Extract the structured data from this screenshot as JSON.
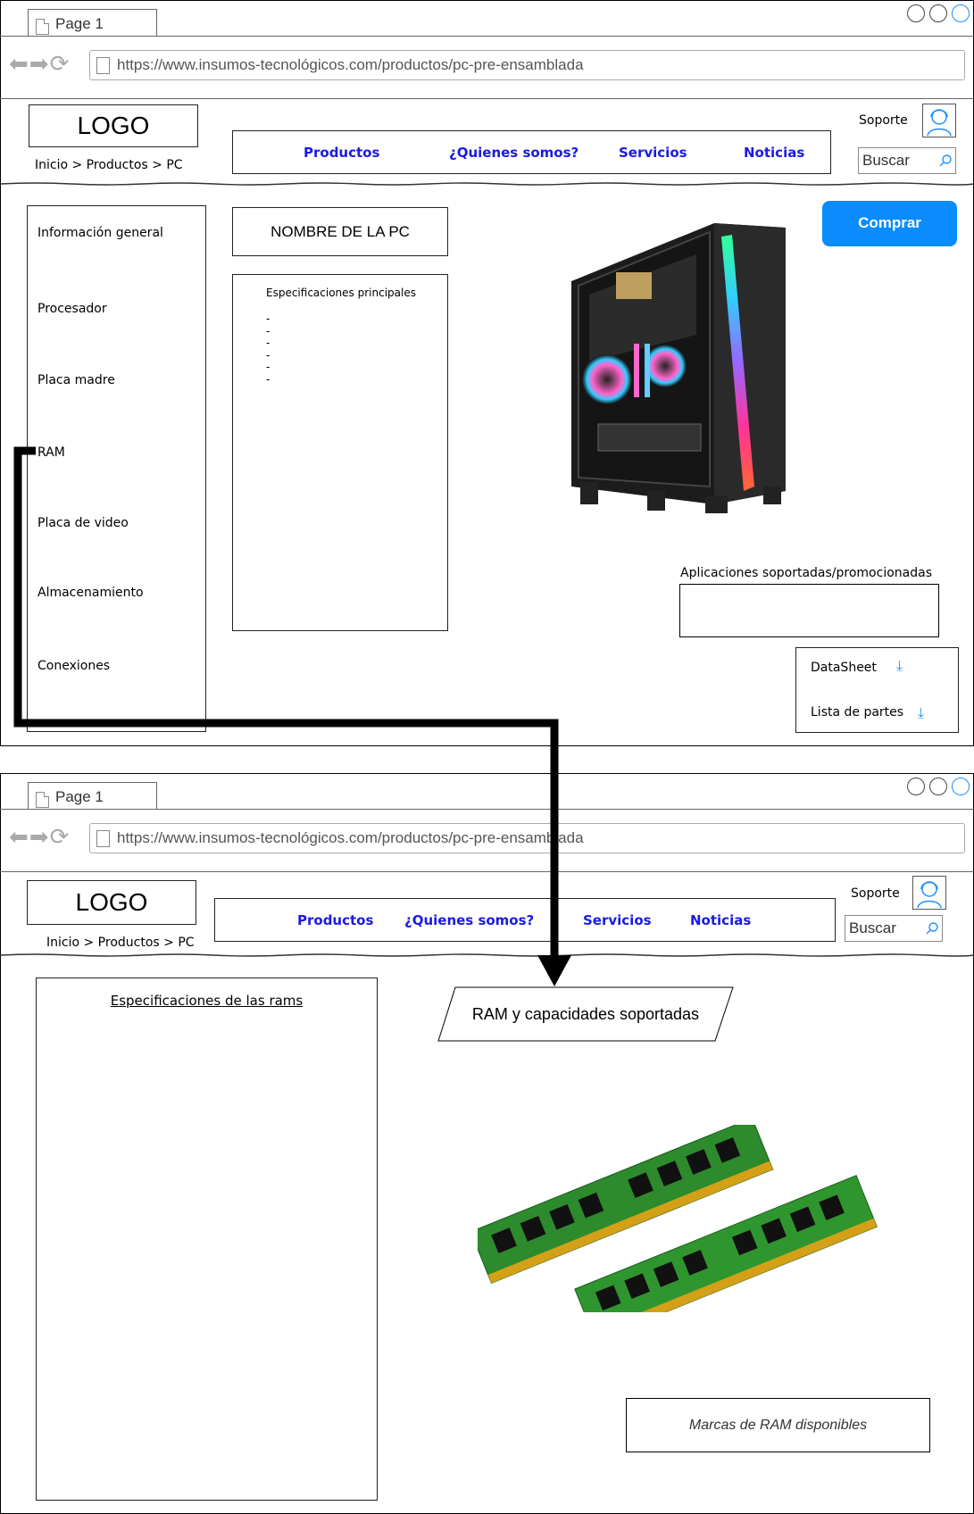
{
  "browser_top": {
    "tab_label": "Page 1",
    "url": "https://www.insumos-tecnológicos.com/productos/pc-pre-ensamblada"
  },
  "browser_bottom": {
    "tab_label": "Page 1",
    "url": "https://www.insumos-tecnológicos.com/productos/pc-pre-ensamblada"
  },
  "header": {
    "logo": "LOGO",
    "breadcrumb": "Inicio > Productos > PC",
    "menu": [
      "Productos",
      "¿Quienes somos?",
      "Servicios",
      "Noticias"
    ],
    "support": "Soporte",
    "search_placeholder": "Buscar"
  },
  "page1": {
    "sidebar": [
      "Información general",
      "Procesador",
      "Placa madre",
      "RAM",
      "Placa de video",
      "Almacenamiento",
      "Conexiones"
    ],
    "pc_name": "NOMBRE DE LA PC",
    "specs_title": "Especificaciones principales",
    "specs_items": [
      "-",
      "-",
      "-",
      "-",
      "-",
      "-"
    ],
    "buy_label": "Comprar",
    "apps_label": "Aplicaciones soportadas/promocionadas",
    "downloads": [
      "DataSheet",
      "Lista de partes"
    ]
  },
  "page2": {
    "ram_specs_title": "Especificaciones de las rams",
    "ram_header": "RAM y capacidades soportadas",
    "ram_brands": "Marcas de RAM disponibles"
  },
  "colors": {
    "menu_link": "#1a1ae6",
    "buy_button": "#0a8cff",
    "window_blue_circle": "#1e90ff",
    "flow_arrow": "#000000"
  }
}
